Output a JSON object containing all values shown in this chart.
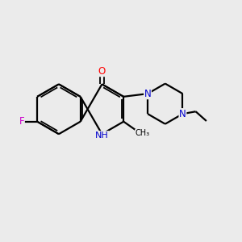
{
  "background_color": "#ebebeb",
  "bond_color": "#000000",
  "atom_colors": {
    "O": "#ff0000",
    "N": "#0000cd",
    "F": "#cc00cc",
    "C": "#000000"
  },
  "figsize": [
    3.0,
    3.0
  ],
  "dpi": 100,
  "xlim": [
    0,
    10
  ],
  "ylim": [
    0,
    10
  ]
}
